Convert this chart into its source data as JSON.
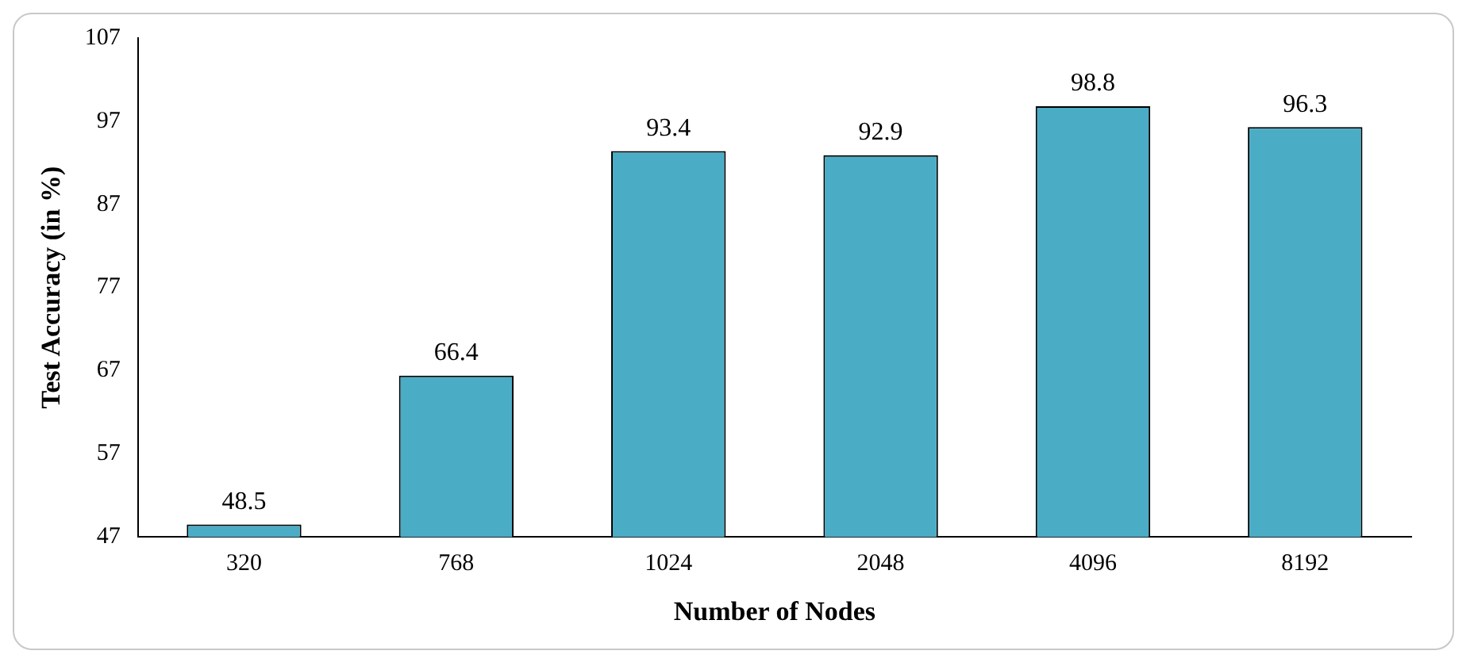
{
  "chart_data": {
    "type": "bar",
    "xlabel": "Number of Nodes",
    "ylabel": "Test Accuracy (in %)",
    "categories": [
      "320",
      "768",
      "1024",
      "2048",
      "4096",
      "8192"
    ],
    "values": [
      48.5,
      66.4,
      93.4,
      92.9,
      98.8,
      96.3
    ],
    "color": "#4bacc6",
    "ylim": [
      47,
      107
    ],
    "yticks": [
      47,
      57,
      67,
      77,
      87,
      97,
      107
    ],
    "grid": false,
    "legend": false,
    "data_labels": true
  }
}
